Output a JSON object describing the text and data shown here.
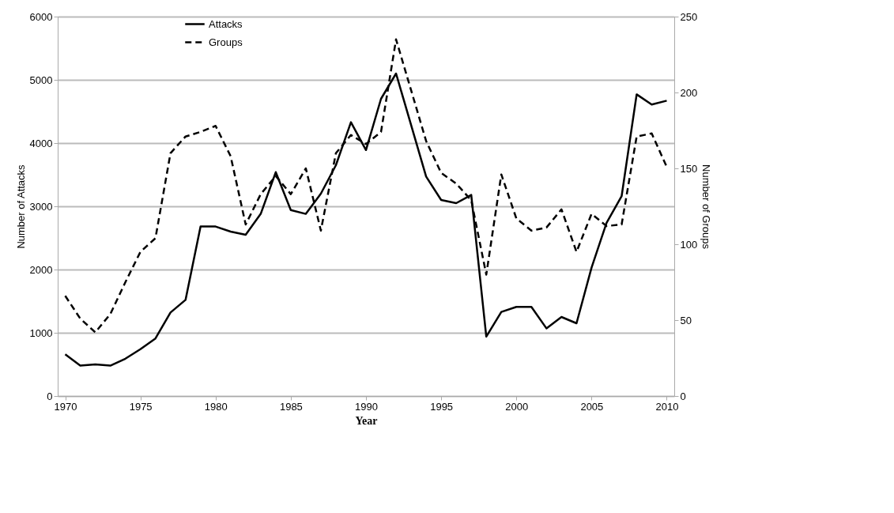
{
  "chart_data": {
    "type": "line",
    "xlabel": "Year",
    "ylabel": "Number of Attacks",
    "y2label": "Number of Groups",
    "xlim": [
      1969.5,
      2010.5
    ],
    "xticks": [
      1970,
      1975,
      1980,
      1985,
      1990,
      1995,
      2000,
      2005,
      2010
    ],
    "ylim": [
      0,
      6000
    ],
    "yticks": [
      0,
      1000,
      2000,
      3000,
      4000,
      5000,
      6000
    ],
    "y2lim": [
      0,
      250
    ],
    "y2ticks": [
      0,
      50,
      100,
      150,
      200,
      250
    ],
    "grid": "y",
    "legend": "top left",
    "marker": "none",
    "series": [
      {
        "name": "Attacks",
        "color": "#000000",
        "line_style": "solid",
        "axis": "y",
        "x": [
          1970,
          1971,
          1972,
          1973,
          1974,
          1975,
          1976,
          1977,
          1978,
          1979,
          1980,
          1981,
          1982,
          1983,
          1984,
          1985,
          1986,
          1987,
          1988,
          1989,
          1990,
          1991,
          1992,
          1994,
          1995,
          1996,
          1997,
          1998,
          1999,
          2000,
          2001,
          2002,
          2003,
          2004,
          2005,
          2006,
          2007,
          2008,
          2009,
          2010
        ],
        "values": [
          660,
          480,
          500,
          480,
          590,
          740,
          910,
          1320,
          1520,
          2680,
          2680,
          2600,
          2550,
          2880,
          3540,
          2940,
          2880,
          3200,
          3650,
          4330,
          3890,
          4700,
          5100,
          3470,
          3100,
          3050,
          3180,
          940,
          1330,
          1410,
          1410,
          1070,
          1250,
          1150,
          2030,
          2740,
          3160,
          4770,
          4610,
          4670
        ]
      },
      {
        "name": "Groups",
        "color": "#000000",
        "line_style": "dashed",
        "axis": "y2",
        "x": [
          1970,
          1971,
          1972,
          1973,
          1974,
          1975,
          1976,
          1977,
          1978,
          1979,
          1980,
          1981,
          1982,
          1983,
          1984,
          1985,
          1986,
          1987,
          1988,
          1989,
          1990,
          1991,
          1992,
          1994,
          1995,
          1996,
          1997,
          1998,
          1999,
          2000,
          2001,
          2002,
          2003,
          2004,
          2005,
          2006,
          2007,
          2008,
          2009,
          2010
        ],
        "values": [
          66,
          51,
          42,
          54,
          75,
          95,
          104,
          160,
          171,
          174,
          178,
          158,
          113,
          133,
          145,
          133,
          150,
          109,
          160,
          172,
          166,
          174,
          235,
          168,
          147,
          140,
          129,
          80,
          146,
          117,
          109,
          111,
          123,
          95,
          120,
          112,
          113,
          171,
          173,
          151
        ]
      }
    ]
  }
}
